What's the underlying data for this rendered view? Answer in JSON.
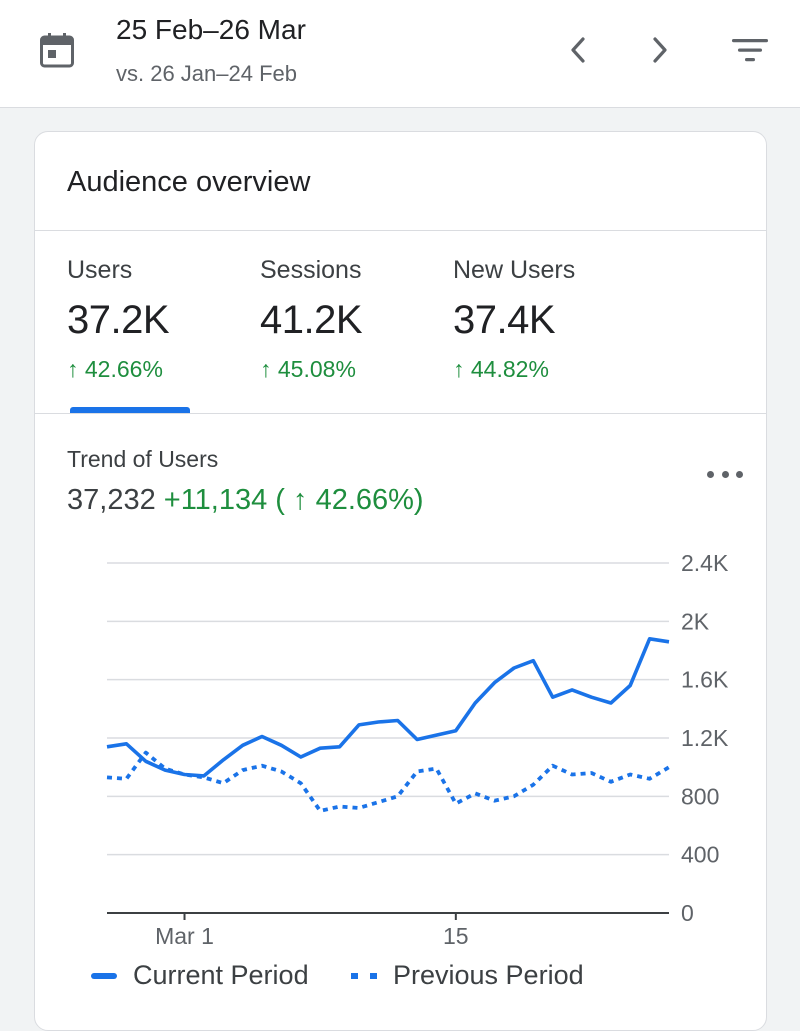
{
  "header": {
    "date_range": "25 Feb–26 Mar",
    "compare_range": "vs. 26 Jan–24 Feb",
    "icons": [
      "calendar-icon",
      "chevron-left-icon",
      "chevron-right-icon",
      "filter-icon"
    ]
  },
  "card": {
    "title": "Audience overview",
    "metrics": [
      {
        "label": "Users",
        "value": "37.2K",
        "delta": "↑ 42.66%"
      },
      {
        "label": "Sessions",
        "value": "41.2K",
        "delta": "↑ 45.08%"
      },
      {
        "label": "New Users",
        "value": "37.4K",
        "delta": "↑ 44.82%"
      }
    ],
    "selected_metric": "Users",
    "trend": {
      "label": "Trend of Users",
      "total": "37,232",
      "change": "+11,134 ( ↑ 42.66%)"
    }
  },
  "colors": {
    "accent": "#1a73e8",
    "positive": "#1e8e3e"
  },
  "chart_data": {
    "type": "line",
    "title": "Trend of Users",
    "x_tick_labels": [
      {
        "day_index": 4,
        "label": "Mar 1"
      },
      {
        "day_index": 18,
        "label": "15"
      }
    ],
    "ylim": [
      0,
      2400
    ],
    "y_ticks": [
      {
        "value": 0,
        "label": "0"
      },
      {
        "value": 400,
        "label": "400"
      },
      {
        "value": 800,
        "label": "800"
      },
      {
        "value": 1200,
        "label": "1.2K"
      },
      {
        "value": 1600,
        "label": "1.6K"
      },
      {
        "value": 2000,
        "label": "2K"
      },
      {
        "value": 2400,
        "label": "2.4K"
      }
    ],
    "series": [
      {
        "name": "Current Period",
        "style": "solid",
        "values": [
          1140,
          1160,
          1040,
          980,
          950,
          940,
          1050,
          1150,
          1210,
          1150,
          1070,
          1130,
          1140,
          1290,
          1310,
          1320,
          1190,
          1220,
          1250,
          1440,
          1580,
          1680,
          1730,
          1480,
          1530,
          1480,
          1440,
          1560,
          1880,
          1860
        ]
      },
      {
        "name": "Previous Period",
        "style": "dotted",
        "values": [
          930,
          920,
          1100,
          990,
          950,
          930,
          890,
          980,
          1010,
          970,
          890,
          700,
          730,
          720,
          760,
          800,
          970,
          990,
          750,
          820,
          770,
          800,
          880,
          1010,
          950,
          960,
          900,
          950,
          920,
          1000
        ]
      }
    ]
  }
}
